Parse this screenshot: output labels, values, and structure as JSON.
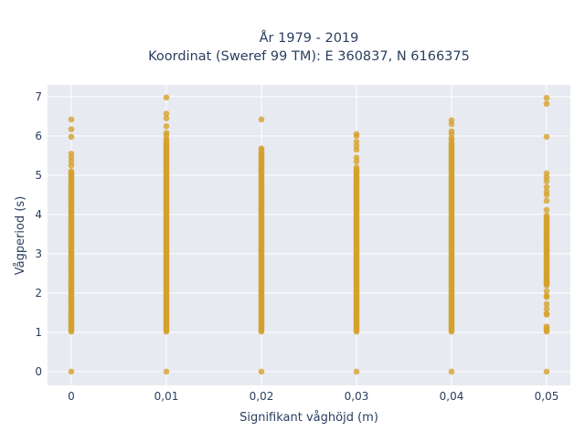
{
  "chart_data": {
    "type": "scatter",
    "title_lines": [
      "År 1979 - 2019",
      "Koordinat (Sweref 99 TM): E 360837, N 6166375"
    ],
    "xlabel": "Signifikant våghöjd (m)",
    "ylabel": "Vågperiod (s)",
    "x_ticks": [
      {
        "value": 0,
        "label": "0"
      },
      {
        "value": 0.01,
        "label": "0,01"
      },
      {
        "value": 0.02,
        "label": "0,02"
      },
      {
        "value": 0.03,
        "label": "0,03"
      },
      {
        "value": 0.04,
        "label": "0,04"
      },
      {
        "value": 0.05,
        "label": "0,05"
      }
    ],
    "y_ticks": [
      {
        "value": 0,
        "label": "0"
      },
      {
        "value": 1,
        "label": "1"
      },
      {
        "value": 2,
        "label": "2"
      },
      {
        "value": 3,
        "label": "3"
      },
      {
        "value": 4,
        "label": "4"
      },
      {
        "value": 5,
        "label": "5"
      },
      {
        "value": 6,
        "label": "6"
      },
      {
        "value": 7,
        "label": "7"
      }
    ],
    "xlim": [
      -0.0025,
      0.0525
    ],
    "ylim": [
      -0.35,
      7.3
    ],
    "grid": true,
    "legend": false,
    "marker_color": "#d4a12a",
    "plot_bg": "#e8eaf2",
    "series": [
      {
        "x": 0,
        "outliers": [
          0,
          6.42,
          6.17,
          5.98,
          5.55,
          5.45,
          5.35,
          5.25
        ],
        "bands": [
          [
            1.02,
            5.1
          ]
        ]
      },
      {
        "x": 0.01,
        "outliers": [
          0,
          6.98,
          6.57,
          6.45,
          6.25,
          6.08,
          6.02,
          5.92,
          5.88
        ],
        "bands": [
          [
            1.02,
            5.85
          ]
        ]
      },
      {
        "x": 0.02,
        "outliers": [
          0,
          6.42,
          5.68,
          5.65,
          5.58
        ],
        "bands": [
          [
            1.02,
            5.55
          ]
        ]
      },
      {
        "x": 0.03,
        "outliers": [
          0,
          6.05,
          6.0,
          5.85,
          5.75,
          5.65,
          5.45,
          5.35,
          5.2
        ],
        "bands": [
          [
            1.02,
            5.15
          ]
        ]
      },
      {
        "x": 0.04,
        "outliers": [
          0,
          6.4,
          6.3,
          6.12,
          6.05,
          5.95,
          5.9
        ],
        "bands": [
          [
            1.02,
            5.85
          ]
        ]
      },
      {
        "x": 0.05,
        "outliers": [
          0,
          6.97,
          6.82,
          5.98,
          5.05,
          4.95,
          4.85,
          4.7,
          4.58,
          4.5,
          4.35,
          4.12,
          3.98,
          2.05,
          1.93,
          1.9,
          1.72,
          1.6,
          1.48,
          1.45,
          1.15,
          1.1,
          1.05,
          1.02
        ],
        "bands": [
          [
            2.2,
            3.95
          ]
        ]
      }
    ]
  }
}
